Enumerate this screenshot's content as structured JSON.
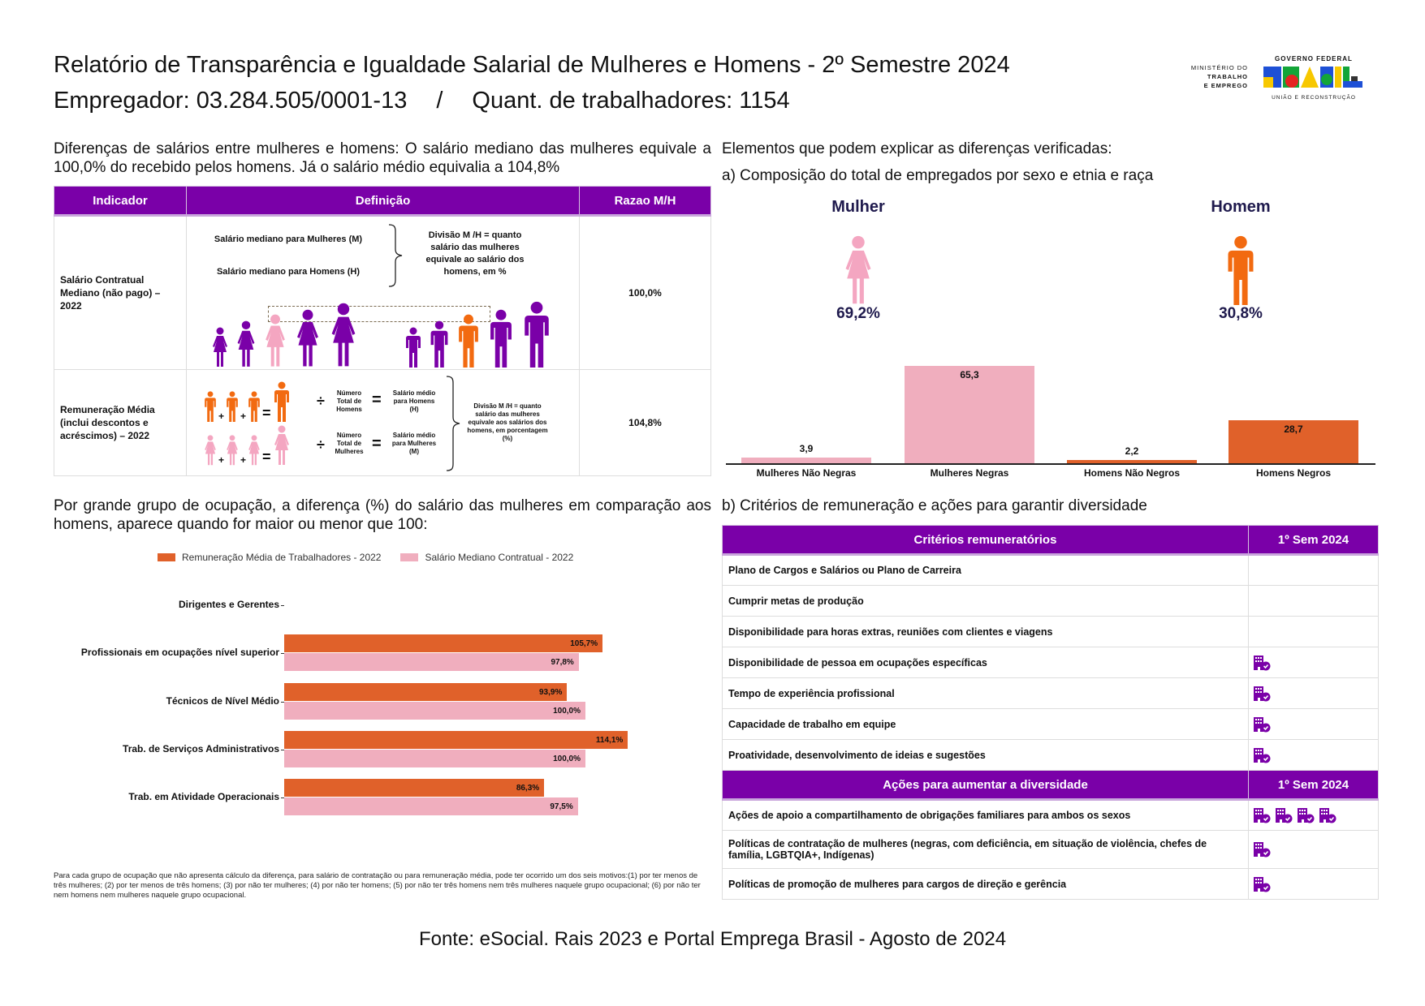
{
  "header": {
    "title": "Relatório de Transparência e Igualdade Salarial de Mulheres e Homens - 2º Semestre 2024",
    "employer": "Empregador: 03.284.505/0001-13",
    "separator": "/",
    "workers": "Quant. de trabalhadores: 1154",
    "logo": {
      "ministry_line1": "MINISTÉRIO DO",
      "ministry_line2": "TRABALHO",
      "ministry_line3": "E EMPREGO",
      "gov": "GOVERNO FEDERAL",
      "brand": "BRASIL",
      "tagline": "UNIÃO E RECONSTRUÇÃO"
    }
  },
  "summary": "Diferenças de salários entre mulheres e homens: O salário mediano das mulheres equivale a 100,0% do recebido pelos homens. Já o salário médio equivalia a 104,8%",
  "indicator_table": {
    "headers": [
      "Indicador",
      "Definição",
      "Razao M/H"
    ],
    "rows": [
      {
        "indicator": "Salário Contratual Mediano (não pago) – 2022",
        "def_m": "Salário mediano para Mulheres (M)",
        "def_h": "Salário mediano para Homens (H)",
        "def_div": "Divisão M /H = quanto salário das mulheres equivale ao salário dos homens, em %",
        "ratio": "100,0%"
      },
      {
        "indicator": "Remuneração Média (inclui descontos e acréscimos) – 2022",
        "num_h": "Número Total de Homens",
        "res_h": "Salário médio para Homens (H)",
        "num_m": "Número Total de Mulheres",
        "res_m": "Salário médio para Mulheres (M)",
        "def_div": "Divisão M /H = quanto salário das mulheres equivale aos salários dos homens, em porcentagem (%)",
        "ratio": "104,8%",
        "plus": "+",
        "equals": "=",
        "divide": "÷"
      }
    ]
  },
  "elements": {
    "heading": "Elementos que podem explicar as diferenças verificadas:",
    "a_heading": "a) Composição do total de empregados por sexo e etnia e raça",
    "gender": [
      {
        "label": "Mulher",
        "pct": "69,2%",
        "color": "#f4a6c1"
      },
      {
        "label": "Homem",
        "pct": "30,8%",
        "color": "#f26a10"
      }
    ]
  },
  "chart_data": [
    {
      "type": "bar",
      "categories": [
        "Mulheres Não Negras",
        "Mulheres Negras",
        "Homens Não Negros",
        "Homens Negros"
      ],
      "values": [
        3.9,
        65.3,
        2.2,
        28.7
      ],
      "labels": [
        "3,9",
        "65,3",
        "2,2",
        "28,7"
      ],
      "colors": [
        "#f0aebe",
        "#f0aebe",
        "#e0612a",
        "#e0612a"
      ],
      "ylim": [
        0,
        70
      ]
    },
    {
      "type": "bar",
      "orientation": "horizontal",
      "title": "Por grande grupo de ocupação, a diferença (%) do salário das mulheres em comparação aos homens, aparece quando for maior ou menor que 100:",
      "categories": [
        "Dirigentes e Gerentes",
        "Profissionais em ocupações nível superior",
        "Técnicos de Nível Médio",
        "Trab. de Serviços Administrativos",
        "Trab. em Atividade Operacionais"
      ],
      "series": [
        {
          "name": "Remuneração Média de Trabalhadores - 2022",
          "color": "#e0612a",
          "values": [
            null,
            105.7,
            93.9,
            114.1,
            86.3
          ],
          "labels": [
            "",
            "105,7%",
            "93,9%",
            "114,1%",
            "86,3%"
          ]
        },
        {
          "name": "Salário Mediano Contratual - 2022",
          "color": "#f0aebe",
          "values": [
            null,
            97.8,
            100.0,
            100.0,
            97.5
          ],
          "labels": [
            "",
            "97,8%",
            "100,0%",
            "100,0%",
            "97,5%"
          ]
        }
      ],
      "legend": "top"
    }
  ],
  "footnote": "Para cada grupo de ocupação que não apresenta cálculo da diferença, para salário de contratação ou para remuneração média, pode ter ocorrido um dos seis motivos:(1) por ter menos de três mulheres; (2) por ter menos de três homens; (3) por não ter mulheres; (4) por não ter homens; (5) por não ter três homens nem três mulheres naquele grupo ocupacional; (6) por não ter nem homens nem mulheres naquele grupo ocupacional.",
  "criteria": {
    "b_heading": "b) Critérios de remuneração e ações para garantir diversidade",
    "header": [
      "Critérios remuneratórios",
      "1º Sem 2024"
    ],
    "rows": [
      {
        "label": "Plano de Cargos e Salários ou Plano de Carreira",
        "icons": 0
      },
      {
        "label": "Cumprir metas de produção",
        "icons": 0
      },
      {
        "label": "Disponibilidade para horas extras, reuniões com clientes e viagens",
        "icons": 0
      },
      {
        "label": "Disponibilidade de pessoa em ocupações específicas",
        "icons": 1
      },
      {
        "label": "Tempo de experiência profissional",
        "icons": 1
      },
      {
        "label": "Capacidade de trabalho em equipe",
        "icons": 1
      },
      {
        "label": "Proatividade, desenvolvimento de ideias e sugestões",
        "icons": 1
      }
    ],
    "actions_header": [
      "Ações para aumentar a diversidade",
      "1º Sem 2024"
    ],
    "actions": [
      {
        "label": "Ações de apoio a compartilhamento de obrigações familiares para ambos os sexos",
        "icons": 4
      },
      {
        "label": "Políticas de contratação de mulheres (negras, com deficiência, em situação de violência, chefes de família, LGBTQIA+, Indígenas)",
        "icons": 1
      },
      {
        "label": "Políticas de promoção de mulheres para cargos de direção e gerência",
        "icons": 1
      }
    ],
    "icon": "building-check-icon",
    "accent": "#7a00a8"
  },
  "source": "Fonte: eSocial. Rais 2023 e Portal Emprega Brasil - Agosto de 2024"
}
